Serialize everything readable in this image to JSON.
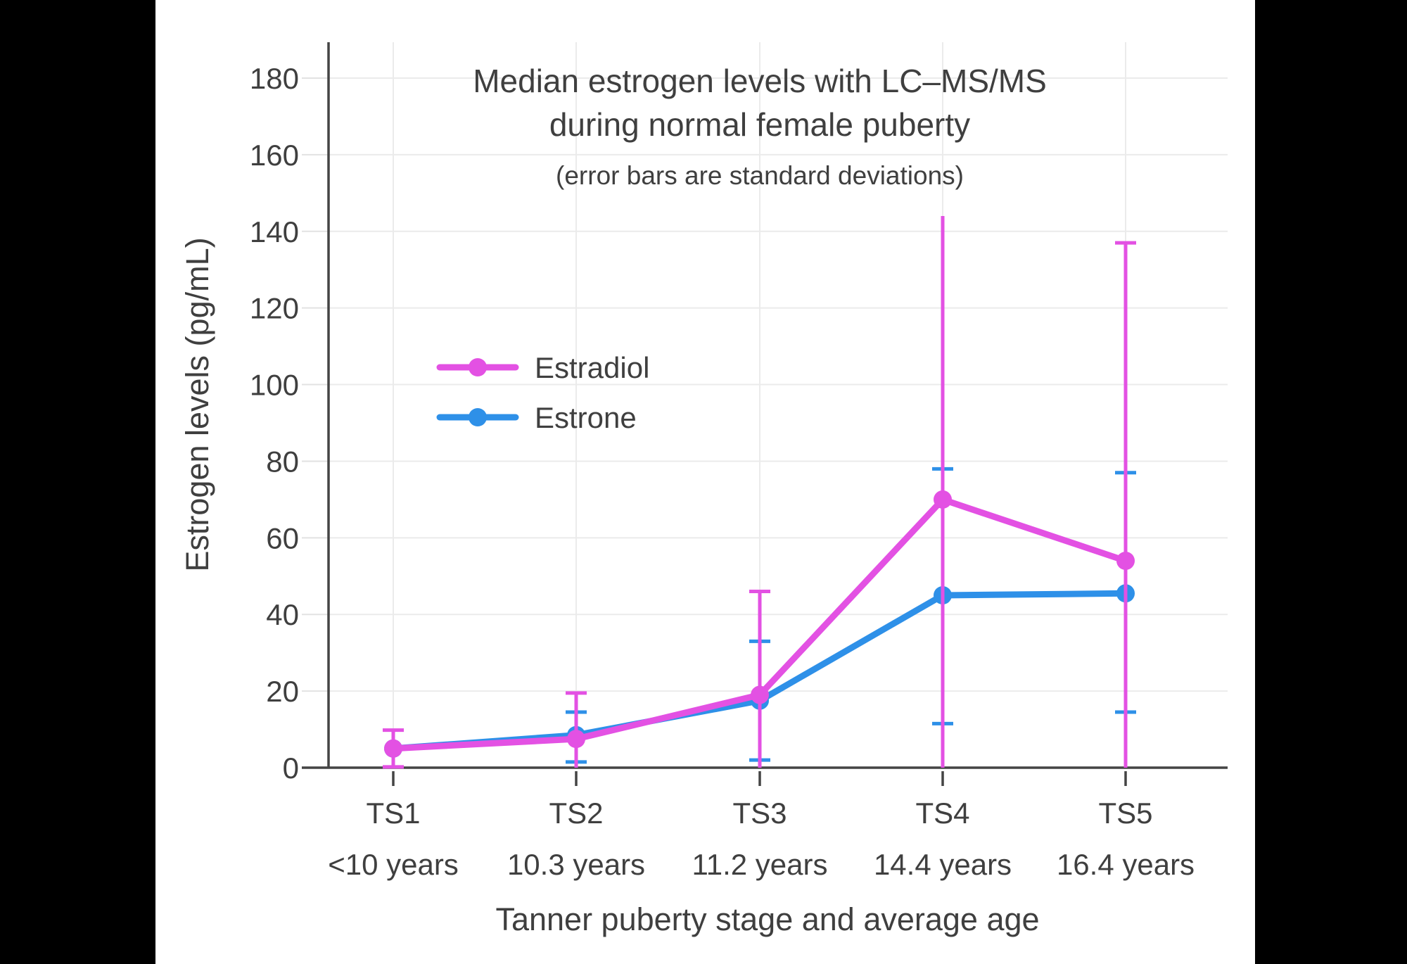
{
  "page": {
    "background": "#000000",
    "canvas_background": "#ffffff",
    "text_color": "#3f3f3f",
    "axis_color": "#444444",
    "gridline_color": "#ebebeb"
  },
  "chart_data": {
    "type": "line",
    "title": "Median estrogen levels with LC–MS/MS during normal female puberty",
    "title_lines": [
      "Median estrogen levels with LC–MS/MS",
      "during normal female puberty"
    ],
    "subtitle": "(error bars are standard deviations)",
    "xlabel": "Tanner puberty stage and average age",
    "ylabel": "Estrogen levels (pg/mL)",
    "categories": [
      "TS1",
      "TS2",
      "TS3",
      "TS4",
      "TS5"
    ],
    "category_ages": [
      "<10 years",
      "10.3 years",
      "11.2 years",
      "14.4 years",
      "16.4 years"
    ],
    "yticks": [
      0,
      20,
      40,
      60,
      80,
      100,
      120,
      140,
      160,
      180
    ],
    "ylim": [
      0,
      190
    ],
    "grid": true,
    "legend_position": "inside-middle-left",
    "series": [
      {
        "name": "Estradiol",
        "color": "#e351e3",
        "values": [
          5,
          7.5,
          19,
          70,
          54
        ],
        "error_top": [
          9.8,
          19.5,
          46,
          144,
          137
        ],
        "error_bottom": [
          0.2,
          0,
          0,
          0,
          0
        ],
        "error_top_cap": [
          true,
          true,
          true,
          false,
          true
        ],
        "error_bottom_cap": [
          true,
          false,
          false,
          false,
          false
        ]
      },
      {
        "name": "Estrone",
        "color": "#2e90e8",
        "values": [
          5,
          8.5,
          17.5,
          45,
          45.5
        ],
        "error_top": [
          null,
          14.5,
          33,
          78,
          77
        ],
        "error_bottom": [
          null,
          1.5,
          2,
          11.5,
          14.5
        ],
        "error_top_cap": [
          false,
          true,
          true,
          true,
          true
        ],
        "error_bottom_cap": [
          false,
          true,
          true,
          true,
          true
        ]
      }
    ]
  }
}
